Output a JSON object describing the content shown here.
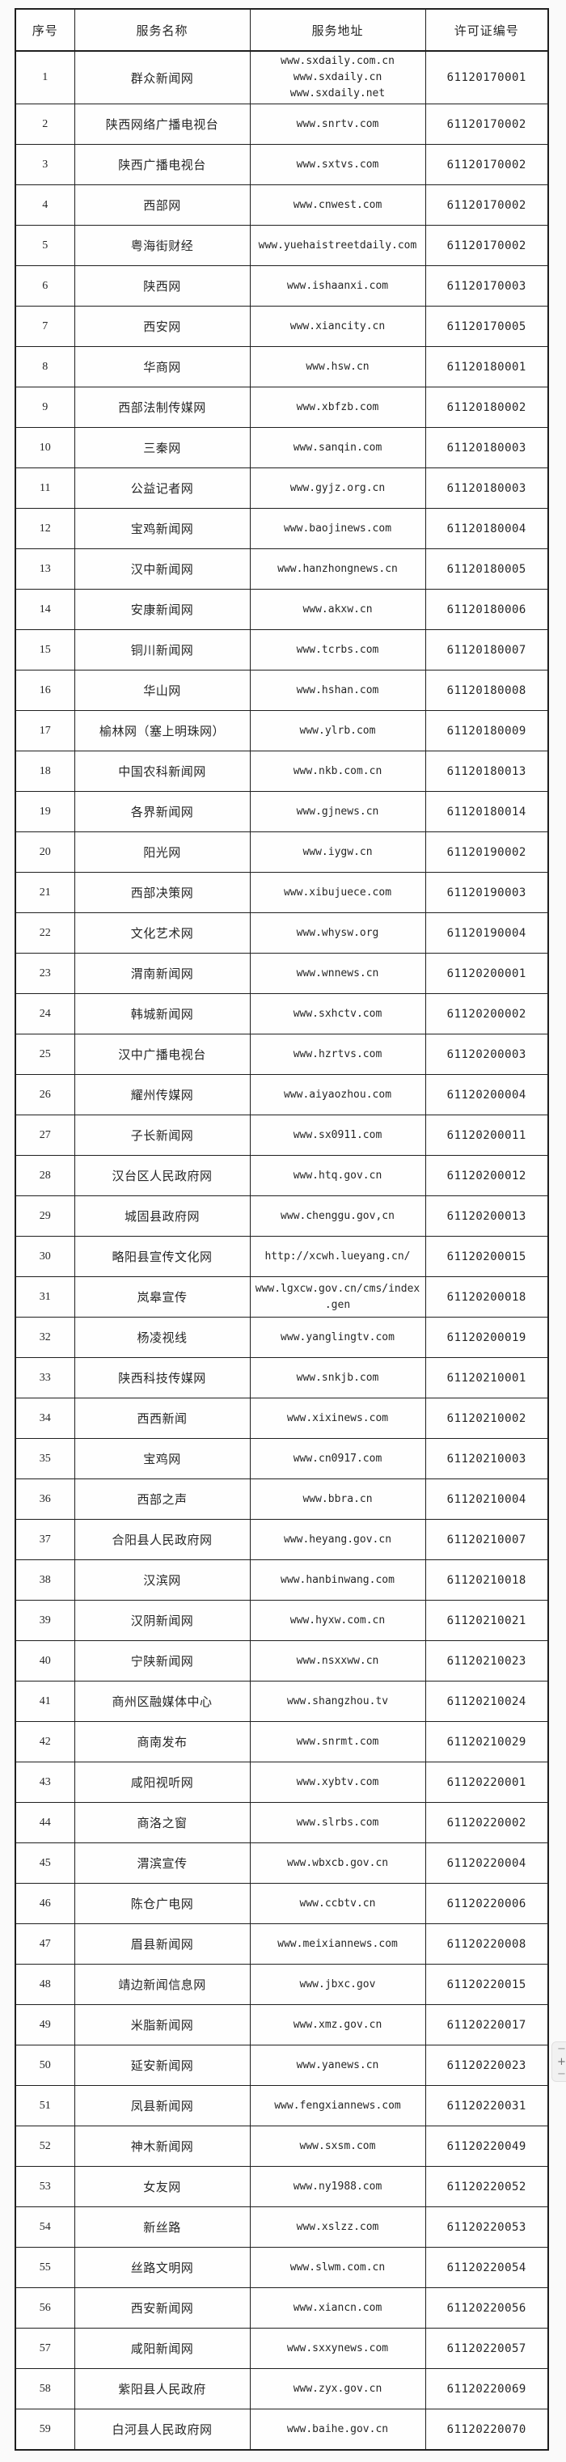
{
  "colors": {
    "page_bg": "#fafafa",
    "cell_bg": "#fefefe",
    "border": "#1f1f1f",
    "text": "#262626",
    "widget_bg": "#f1f1f1",
    "widget_icon": "#6e6e6e"
  },
  "zoom_widget": {
    "minus_top_label": "−",
    "plus_label": "+",
    "minus_bottom_label": "−"
  },
  "table": {
    "headers": [
      "序号",
      "服务名称",
      "服务地址",
      "许可证编号"
    ],
    "rows": [
      {
        "no": "1",
        "name": "群众新闻网",
        "urls": [
          "www.sxdaily.com.cn",
          "www.sxdaily.cn",
          "www.sxdaily.net"
        ],
        "license": "61120170001"
      },
      {
        "no": "2",
        "name": "陕西网络广播电视台",
        "urls": [
          "www.snrtv.com"
        ],
        "license": "61120170002"
      },
      {
        "no": "3",
        "name": "陕西广播电视台",
        "urls": [
          "www.sxtvs.com"
        ],
        "license": "61120170002"
      },
      {
        "no": "4",
        "name": "西部网",
        "urls": [
          "www.cnwest.com"
        ],
        "license": "61120170002"
      },
      {
        "no": "5",
        "name": "粤海街财经",
        "urls": [
          "www.yuehaistreetdaily.com"
        ],
        "license": "61120170002"
      },
      {
        "no": "6",
        "name": "陕西网",
        "urls": [
          "www.ishaanxi.com"
        ],
        "license": "61120170003"
      },
      {
        "no": "7",
        "name": "西安网",
        "urls": [
          "www.xiancity.cn"
        ],
        "license": "61120170005"
      },
      {
        "no": "8",
        "name": "华商网",
        "urls": [
          "www.hsw.cn"
        ],
        "license": "61120180001"
      },
      {
        "no": "9",
        "name": "西部法制传媒网",
        "urls": [
          "www.xbfzb.com"
        ],
        "license": "61120180002"
      },
      {
        "no": "10",
        "name": "三秦网",
        "urls": [
          "www.sanqin.com"
        ],
        "license": "61120180003"
      },
      {
        "no": "11",
        "name": "公益记者网",
        "urls": [
          "www.gyjz.org.cn"
        ],
        "license": "61120180003"
      },
      {
        "no": "12",
        "name": "宝鸡新闻网",
        "urls": [
          "www.baojinews.com"
        ],
        "license": "61120180004"
      },
      {
        "no": "13",
        "name": "汉中新闻网",
        "urls": [
          "www.hanzhongnews.cn"
        ],
        "license": "61120180005"
      },
      {
        "no": "14",
        "name": "安康新闻网",
        "urls": [
          "www.akxw.cn"
        ],
        "license": "61120180006"
      },
      {
        "no": "15",
        "name": "铜川新闻网",
        "urls": [
          "www.tcrbs.com"
        ],
        "license": "61120180007"
      },
      {
        "no": "16",
        "name": "华山网",
        "urls": [
          "www.hshan.com"
        ],
        "license": "61120180008"
      },
      {
        "no": "17",
        "name": "榆林网（塞上明珠网）",
        "urls": [
          "www.ylrb.com"
        ],
        "license": "61120180009"
      },
      {
        "no": "18",
        "name": "中国农科新闻网",
        "urls": [
          "www.nkb.com.cn"
        ],
        "license": "61120180013"
      },
      {
        "no": "19",
        "name": "各界新闻网",
        "urls": [
          "www.gjnews.cn"
        ],
        "license": "61120180014"
      },
      {
        "no": "20",
        "name": "阳光网",
        "urls": [
          "www.iygw.cn"
        ],
        "license": "61120190002"
      },
      {
        "no": "21",
        "name": "西部决策网",
        "urls": [
          "www.xibujuece.com"
        ],
        "license": "61120190003"
      },
      {
        "no": "22",
        "name": "文化艺术网",
        "urls": [
          "www.whysw.org"
        ],
        "license": "61120190004"
      },
      {
        "no": "23",
        "name": "渭南新闻网",
        "urls": [
          "www.wnnews.cn"
        ],
        "license": "61120200001"
      },
      {
        "no": "24",
        "name": "韩城新闻网",
        "urls": [
          "www.sxhctv.com"
        ],
        "license": "61120200002"
      },
      {
        "no": "25",
        "name": "汉中广播电视台",
        "urls": [
          "www.hzrtvs.com"
        ],
        "license": "61120200003"
      },
      {
        "no": "26",
        "name": "耀州传媒网",
        "urls": [
          "www.aiyaozhou.com"
        ],
        "license": "61120200004"
      },
      {
        "no": "27",
        "name": "子长新闻网",
        "urls": [
          "www.sx0911.com"
        ],
        "license": "61120200011"
      },
      {
        "no": "28",
        "name": "汉台区人民政府网",
        "urls": [
          "www.htq.gov.cn"
        ],
        "license": "61120200012"
      },
      {
        "no": "29",
        "name": "城固县政府网",
        "urls": [
          "www.chenggu.gov,cn"
        ],
        "license": "61120200013"
      },
      {
        "no": "30",
        "name": "略阳县宣传文化网",
        "urls": [
          "http://xcwh.lueyang.cn/"
        ],
        "license": "61120200015"
      },
      {
        "no": "31",
        "name": "岚皋宣传",
        "urls": [
          "www.lgxcw.gov.cn/cms/index.gen"
        ],
        "license": "61120200018"
      },
      {
        "no": "32",
        "name": "杨凌视线",
        "urls": [
          "www.yanglingtv.com"
        ],
        "license": "61120200019"
      },
      {
        "no": "33",
        "name": "陕西科技传媒网",
        "urls": [
          "www.snkjb.com"
        ],
        "license": "61120210001"
      },
      {
        "no": "34",
        "name": "西西新闻",
        "urls": [
          "www.xixinews.com"
        ],
        "license": "61120210002"
      },
      {
        "no": "35",
        "name": "宝鸡网",
        "urls": [
          "www.cn0917.com"
        ],
        "license": "61120210003"
      },
      {
        "no": "36",
        "name": "西部之声",
        "urls": [
          "www.bbra.cn"
        ],
        "license": "61120210004"
      },
      {
        "no": "37",
        "name": "合阳县人民政府网",
        "urls": [
          "www.heyang.gov.cn"
        ],
        "license": "61120210007"
      },
      {
        "no": "38",
        "name": "汉滨网",
        "urls": [
          "www.hanbinwang.com"
        ],
        "license": "61120210018"
      },
      {
        "no": "39",
        "name": "汉阴新闻网",
        "urls": [
          "www.hyxw.com.cn"
        ],
        "license": "61120210021"
      },
      {
        "no": "40",
        "name": "宁陕新闻网",
        "urls": [
          "www.nsxxww.cn"
        ],
        "license": "61120210023"
      },
      {
        "no": "41",
        "name": "商州区融媒体中心",
        "urls": [
          "www.shangzhou.tv"
        ],
        "license": "61120210024"
      },
      {
        "no": "42",
        "name": "商南发布",
        "urls": [
          "www.snrmt.com"
        ],
        "license": "61120210029"
      },
      {
        "no": "43",
        "name": "咸阳视听网",
        "urls": [
          "www.xybtv.com"
        ],
        "license": "61120220001"
      },
      {
        "no": "44",
        "name": "商洛之窗",
        "urls": [
          "www.slrbs.com"
        ],
        "license": "61120220002"
      },
      {
        "no": "45",
        "name": "渭滨宣传",
        "urls": [
          "www.wbxcb.gov.cn"
        ],
        "license": "61120220004"
      },
      {
        "no": "46",
        "name": "陈仓广电网",
        "urls": [
          "www.ccbtv.cn"
        ],
        "license": "61120220006"
      },
      {
        "no": "47",
        "name": "眉县新闻网",
        "urls": [
          "www.meixiannews.com"
        ],
        "license": "61120220008"
      },
      {
        "no": "48",
        "name": "靖边新闻信息网",
        "urls": [
          "www.jbxc.gov"
        ],
        "license": "61120220015"
      },
      {
        "no": "49",
        "name": "米脂新闻网",
        "urls": [
          "www.xmz.gov.cn"
        ],
        "license": "61120220017"
      },
      {
        "no": "50",
        "name": "延安新闻网",
        "urls": [
          "www.yanews.cn"
        ],
        "license": "61120220023"
      },
      {
        "no": "51",
        "name": "凤县新闻网",
        "urls": [
          "www.fengxiannews.com"
        ],
        "license": "61120220031"
      },
      {
        "no": "52",
        "name": "神木新闻网",
        "urls": [
          "www.sxsm.com"
        ],
        "license": "61120220049"
      },
      {
        "no": "53",
        "name": "女友网",
        "urls": [
          "www.ny1988.com"
        ],
        "license": "61120220052"
      },
      {
        "no": "54",
        "name": "新丝路",
        "urls": [
          "www.xslzz.com"
        ],
        "license": "61120220053"
      },
      {
        "no": "55",
        "name": "丝路文明网",
        "urls": [
          "www.slwm.com.cn"
        ],
        "license": "61120220054"
      },
      {
        "no": "56",
        "name": "西安新闻网",
        "urls": [
          "www.xiancn.com"
        ],
        "license": "61120220056"
      },
      {
        "no": "57",
        "name": "咸阳新闻网",
        "urls": [
          "www.sxxynews.com"
        ],
        "license": "61120220057"
      },
      {
        "no": "58",
        "name": "紫阳县人民政府",
        "urls": [
          "www.zyx.gov.cn"
        ],
        "license": "61120220069"
      },
      {
        "no": "59",
        "name": "白河县人民政府网",
        "urls": [
          "www.baihe.gov.cn"
        ],
        "license": "61120220070"
      }
    ]
  }
}
